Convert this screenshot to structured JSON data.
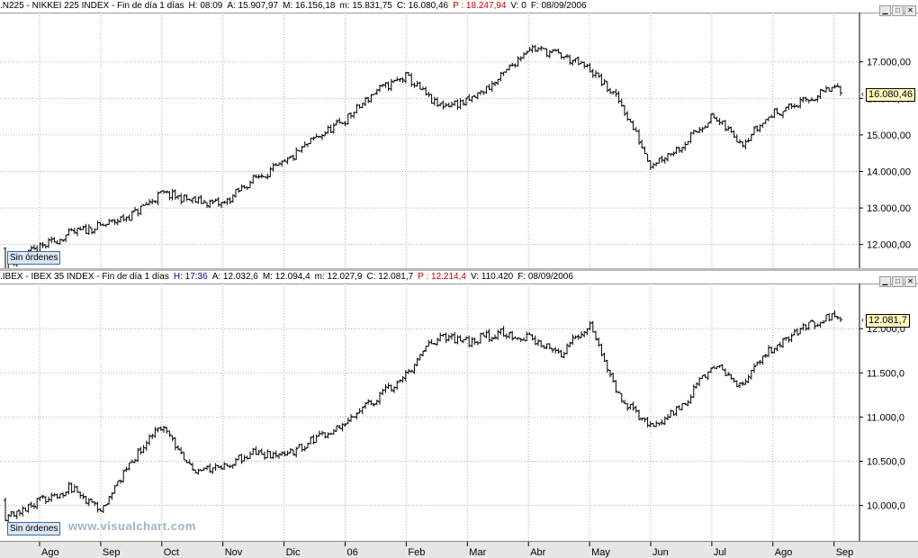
{
  "charts": [
    {
      "header": [
        {
          "text": ".N225 - NIKKEI 225 INDEX - Fin de día 1 días",
          "cls": ""
        },
        {
          "text": "H: 08:09",
          "cls": ""
        },
        {
          "text": "A: 15.907,97",
          "cls": ""
        },
        {
          "text": "M: 16.156,18",
          "cls": ""
        },
        {
          "text": "m: 15.831,75",
          "cls": ""
        },
        {
          "text": "C: 16.080,46",
          "cls": ""
        },
        {
          "text": "P : 18.247,94",
          "cls": "red"
        },
        {
          "text": "V: 0",
          "cls": ""
        },
        {
          "text": "F: 08/09/2006",
          "cls": ""
        }
      ],
      "badge": "Sin órdenes",
      "last_price_label": "16.080,46",
      "yticks": [
        {
          "v": 12000,
          "label": "12.000,00"
        },
        {
          "v": 13000,
          "label": "13.000,00"
        },
        {
          "v": 14000,
          "label": "14.000,00"
        },
        {
          "v": 15000,
          "label": "15.000,00"
        },
        {
          "v": 16000,
          "label": "16.000,00"
        },
        {
          "v": 17000,
          "label": "17.000,00"
        }
      ],
      "ylim": [
        11450,
        18250
      ],
      "chart_data": {
        "type": "ohlc",
        "title": "NIKKEI 225 INDEX",
        "xlabel": "",
        "ylabel": "",
        "x": [
          "Ago",
          "Ago+0.5",
          "Sep",
          "Sep+0.5",
          "Oct",
          "Oct+0.5",
          "Nov",
          "Nov+0.5",
          "Dic",
          "Dic+0.5",
          "06",
          "06+0.5",
          "Feb",
          "Feb+0.5",
          "Mar",
          "Mar+0.5",
          "Abr",
          "Abr+0.5",
          "May",
          "May+0.5",
          "Jun",
          "Jun+0.5",
          "Jul",
          "Jul+0.5",
          "Ago",
          "Ago+0.5",
          "Sep",
          "Sep+0.08"
        ],
        "close": [
          11900,
          12300,
          12500,
          12800,
          13400,
          13200,
          13100,
          13800,
          14200,
          14900,
          15400,
          16200,
          16600,
          15800,
          15900,
          16500,
          17400,
          17200,
          16800,
          15900,
          14200,
          14700,
          15500,
          14800,
          15600,
          15900,
          16300,
          16080
        ],
        "ylim": [
          11450,
          18250
        ]
      }
    },
    {
      "header": [
        {
          "text": ".IBEX - IBEX 35 INDEX - Fin de día 1 días",
          "cls": ""
        },
        {
          "text": "H: 17:36",
          "cls": "blue"
        },
        {
          "text": "A: 12.032,6",
          "cls": ""
        },
        {
          "text": "M: 12.094,4",
          "cls": ""
        },
        {
          "text": "m: 12.027,9",
          "cls": ""
        },
        {
          "text": "C: 12.081,7",
          "cls": ""
        },
        {
          "text": "P : 12.214,4",
          "cls": "red"
        },
        {
          "text": "V: 110.420",
          "cls": ""
        },
        {
          "text": "F: 08/09/2006",
          "cls": ""
        }
      ],
      "badge": "Sin órdenes",
      "last_price_label": "12.081,7",
      "yticks": [
        {
          "v": 10000,
          "label": "10.000,0"
        },
        {
          "v": 10500,
          "label": "10.500,0"
        },
        {
          "v": 11000,
          "label": "11.000,0"
        },
        {
          "v": 11500,
          "label": "11.500,0"
        },
        {
          "v": 12000,
          "label": "12.000,0"
        }
      ],
      "ylim": [
        9640,
        12470
      ],
      "chart_data": {
        "type": "ohlc",
        "title": "IBEX 35 INDEX",
        "xlabel": "",
        "ylabel": "",
        "x": [
          "Ago",
          "Ago+0.5",
          "Sep",
          "Sep+0.5",
          "Oct",
          "Oct+0.5",
          "Nov",
          "Nov+0.5",
          "Dic",
          "Dic+0.5",
          "06",
          "06+0.5",
          "Feb",
          "Feb+0.5",
          "Mar",
          "Mar+0.5",
          "Abr",
          "Abr+0.5",
          "May",
          "May+0.5",
          "Jun",
          "Jun+0.5",
          "Jul",
          "Jul+0.5",
          "Ago",
          "Ago+0.5",
          "Sep",
          "Sep+0.08"
        ],
        "close": [
          10050,
          10200,
          9950,
          10500,
          10900,
          10400,
          10450,
          10600,
          10550,
          10750,
          10950,
          11200,
          11500,
          11900,
          11850,
          11950,
          11900,
          11700,
          12050,
          11200,
          10900,
          11100,
          11600,
          11350,
          11800,
          12000,
          12150,
          12081
        ],
        "ylim": [
          9640,
          12470
        ]
      }
    }
  ],
  "watermark": "www.visualchart.com",
  "xaxis": [
    {
      "label": "Ago",
      "month": 0
    },
    {
      "label": "Sep",
      "month": 1
    },
    {
      "label": "Oct",
      "month": 2
    },
    {
      "label": "Nov",
      "month": 3
    },
    {
      "label": "Dic",
      "month": 4
    },
    {
      "label": "06",
      "month": 5
    },
    {
      "label": "Feb",
      "month": 6
    },
    {
      "label": "Mar",
      "month": 7
    },
    {
      "label": "Abr",
      "month": 8
    },
    {
      "label": "May",
      "month": 9
    },
    {
      "label": "Jun",
      "month": 10
    },
    {
      "label": "Jul",
      "month": 11
    },
    {
      "label": "Ago",
      "month": 12
    },
    {
      "label": "Sep",
      "month": 13
    }
  ],
  "window_buttons": [
    "▁",
    "□",
    "✕"
  ]
}
